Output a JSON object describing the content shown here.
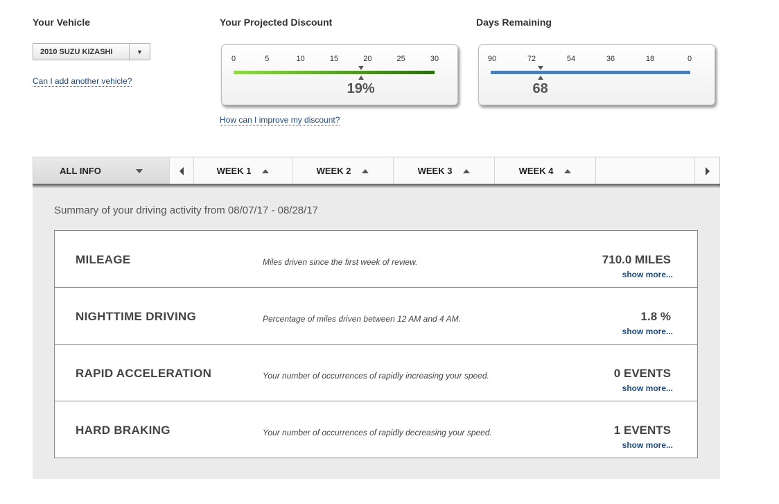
{
  "vehicle": {
    "label": "Your Vehicle",
    "selected": "2010 SUZU KIZASHI",
    "add_link": "Can I add another vehicle?"
  },
  "discount": {
    "label": "Your Projected Discount",
    "ticks": [
      "0",
      "5",
      "10",
      "15",
      "20",
      "25",
      "30"
    ],
    "range": [
      0,
      30
    ],
    "value": 19,
    "display": "19%",
    "improve_link": "How can I improve my discount?",
    "bar_colors": [
      "#8fdc4a",
      "#2e6a10"
    ]
  },
  "days": {
    "label": "Days Remaining",
    "ticks": [
      "90",
      "72",
      "54",
      "36",
      "18",
      "0"
    ],
    "range": [
      90,
      0
    ],
    "value": 68,
    "display": "68",
    "bar_color": "#4a7fb8"
  },
  "tabs": {
    "all_info": "ALL INFO",
    "weeks": [
      "WEEK 1",
      "WEEK 2",
      "WEEK 3",
      "WEEK 4"
    ]
  },
  "summary": "Summary of your driving activity from 08/07/17 - 08/28/17",
  "metrics": [
    {
      "name": "MILEAGE",
      "desc": "Miles driven since the first week of review.",
      "value": "710.0 MILES",
      "more": "show more..."
    },
    {
      "name": "NIGHTTIME DRIVING",
      "desc": "Percentage of miles driven between 12 AM and 4 AM.",
      "value": "1.8 %",
      "more": "show more..."
    },
    {
      "name": "RAPID ACCELERATION",
      "desc": "Your number of occurrences of rapidly increasing your speed.",
      "value": "0 EVENTS",
      "more": "show more..."
    },
    {
      "name": "HARD BRAKING",
      "desc": "Your number of occurrences of rapidly decreasing your speed.",
      "value": "1 EVENTS",
      "more": "show more..."
    }
  ],
  "icons": {
    "select_arrow": "chevron-down-icon",
    "tab_collapse": "caret-up-icon",
    "tab_expand": "caret-down-icon",
    "prev": "arrow-left-icon",
    "next": "arrow-right-icon"
  }
}
